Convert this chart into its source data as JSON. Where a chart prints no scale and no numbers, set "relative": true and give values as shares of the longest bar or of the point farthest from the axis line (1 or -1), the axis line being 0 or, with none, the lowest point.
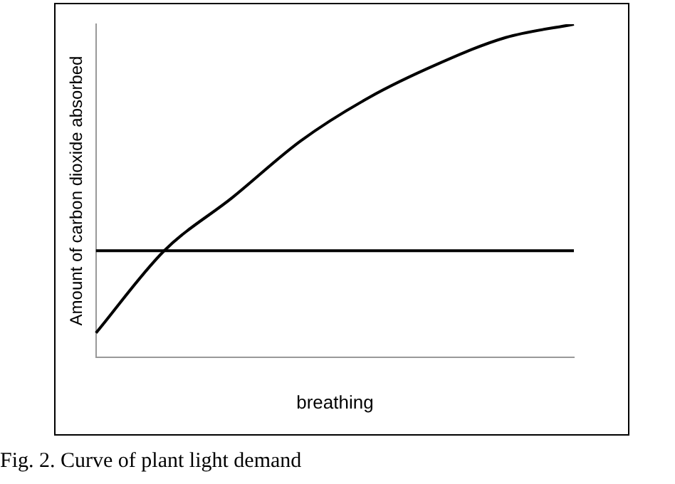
{
  "chart_data": {
    "type": "line",
    "relative": true,
    "xlabel": "breathing",
    "ylabel": "Amount of carbon dioxide absorbed",
    "categories": [
      null,
      null,
      null,
      null,
      null,
      null,
      null,
      null
    ],
    "series": [
      {
        "color": "#000000",
        "values": [
          0.073,
          0.32,
          0.48,
          0.65,
          0.78,
          0.88,
          0.96,
          1.0
        ]
      },
      {
        "color": "#000000",
        "values": [
          0.32,
          0.32,
          0.32,
          0.32,
          0.32,
          0.32,
          0.32,
          0.32
        ]
      }
    ],
    "annotations": [
      "Fig. 2.  Curve of plant light demand"
    ],
    "grid": false,
    "legend": false,
    "marker": "none",
    "line_style": "solid"
  }
}
